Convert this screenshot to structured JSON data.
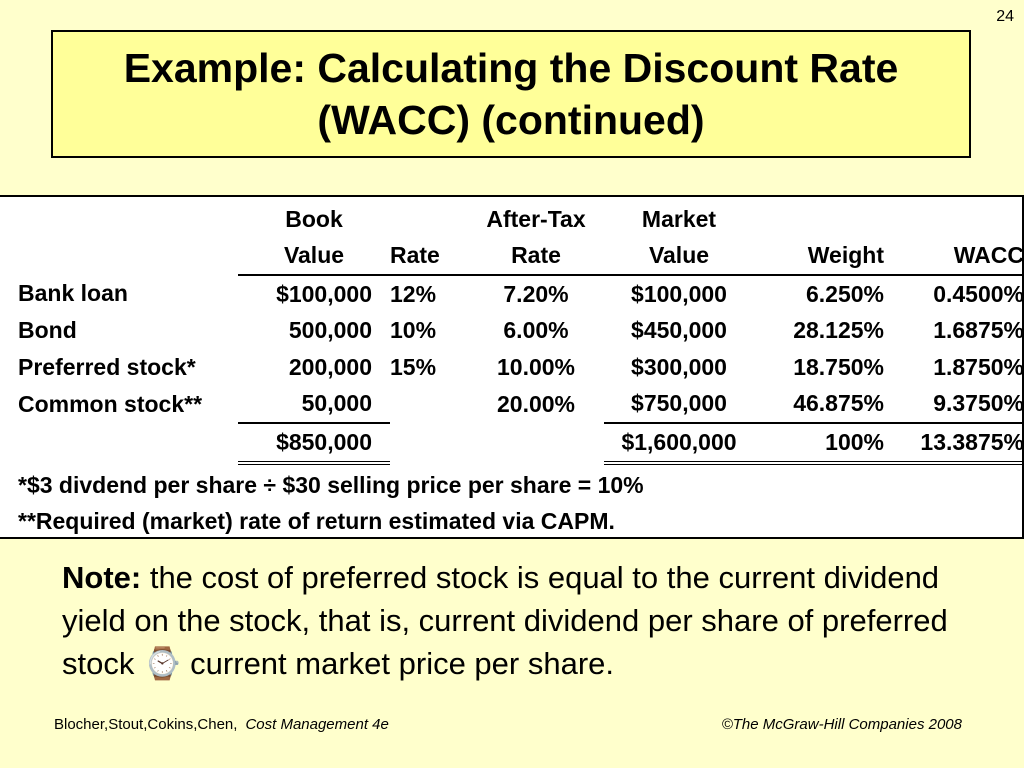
{
  "slide_number": "24",
  "title": {
    "line1": "Example: Calculating the Discount Rate",
    "line2": "(WACC) (continued)"
  },
  "table": {
    "header_row1": [
      "",
      "Book",
      "",
      "After-Tax",
      "Market",
      "",
      ""
    ],
    "header_row2": [
      "",
      "Value",
      "Rate",
      "Rate",
      "Value",
      "Weight",
      "WACC"
    ],
    "rows": [
      [
        "Bank loan",
        "$100,000",
        "12%",
        "7.20%",
        "$100,000",
        "6.250%",
        "0.4500%"
      ],
      [
        "Bond",
        "500,000",
        "10%",
        "6.00%",
        "$450,000",
        "28.125%",
        "1.6875%"
      ],
      [
        "Preferred stock*",
        "200,000",
        "15%",
        "10.00%",
        "$300,000",
        "18.750%",
        "1.8750%"
      ],
      [
        "Common stock**",
        "50,000",
        "",
        "20.00%",
        "$750,000",
        "46.875%",
        "9.3750%"
      ]
    ],
    "totals": [
      "",
      "$850,000",
      "",
      "",
      "$1,600,000",
      "100%",
      "13.3875%"
    ],
    "footnotes": [
      "*$3 divdend per share ÷ $30 selling price per share = 10%",
      "**Required (market) rate of return estimated via CAPM."
    ]
  },
  "note": {
    "label": "Note:",
    "text": " the cost of preferred stock is equal to the current dividend yield on the stock, that is, current dividend per share of preferred stock ⌚ current market price per share."
  },
  "footer": {
    "authors": "Blocher,Stout,Cokins,Chen,",
    "book": "Cost Management 4e",
    "copyright": "©The McGraw-Hill Companies 2008"
  }
}
